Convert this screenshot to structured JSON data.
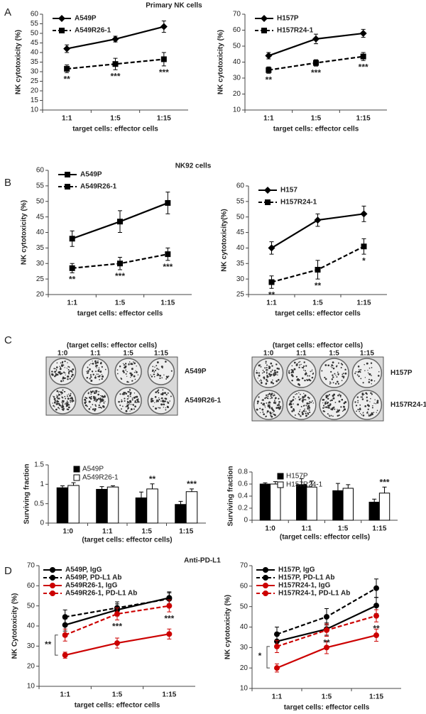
{
  "figure": {
    "panel_labels": [
      "A",
      "B",
      "C",
      "D"
    ],
    "panel_titles": [
      "Primary NK cells",
      "NK92 cells",
      "Anti-PD-L1"
    ]
  },
  "plates": [
    {
      "header": "(target cells: effector cells)",
      "ratios": [
        "1:0",
        "1:1",
        "1:5",
        "1:15"
      ],
      "rows": [
        "A549P",
        "A549R26-1"
      ]
    },
    {
      "header": "(target cells: effector cells)",
      "ratios": [
        "1:0",
        "1:1",
        "1:5",
        "1:15"
      ],
      "rows": [
        "H157P",
        "H157R24-1"
      ]
    }
  ],
  "chart_data": [
    {
      "type": "line",
      "xlabel": "target cells: effector cells",
      "ylabel": "NK cytotoxicity (%)",
      "categories": [
        "1:1",
        "1:5",
        "1:15"
      ],
      "ylim": [
        10,
        60
      ],
      "yticks": [
        10,
        15,
        20,
        25,
        30,
        35,
        40,
        45,
        50,
        55,
        60
      ],
      "series": [
        {
          "name": "A549P",
          "color": "#000000",
          "dash": false,
          "marker": "diamond",
          "values": [
            42,
            47,
            53.5
          ],
          "errors": [
            2,
            1.5,
            3
          ]
        },
        {
          "name": "A549R26-1",
          "color": "#000000",
          "dash": true,
          "marker": "square",
          "values": [
            31.5,
            34,
            36.5
          ],
          "errors": [
            2,
            3,
            3.5
          ],
          "annotations": [
            "**",
            "***",
            "***"
          ]
        }
      ]
    },
    {
      "type": "line",
      "xlabel": "target cells: effector cells",
      "ylabel": "NK cytotoxicity (%)",
      "categories": [
        "1:1",
        "1:5",
        "1:15"
      ],
      "ylim": [
        10,
        70
      ],
      "yticks": [
        10,
        20,
        30,
        40,
        50,
        60,
        70
      ],
      "series": [
        {
          "name": "H157P",
          "color": "#000000",
          "dash": false,
          "marker": "diamond",
          "values": [
            44,
            54.5,
            58
          ],
          "errors": [
            2,
            3,
            2.5
          ]
        },
        {
          "name": "H157R24-1",
          "color": "#000000",
          "dash": true,
          "marker": "square",
          "values": [
            35,
            39.5,
            43.5
          ],
          "errors": [
            2,
            2,
            2.5
          ],
          "annotations": [
            "**",
            "***",
            "***"
          ]
        }
      ]
    },
    {
      "type": "line",
      "xlabel": "target cells: effector cells",
      "ylabel": "NK cytotoxicity (%)",
      "categories": [
        "1:1",
        "1:5",
        "1:15"
      ],
      "ylim": [
        20,
        60
      ],
      "yticks": [
        20,
        25,
        30,
        35,
        40,
        45,
        50,
        55,
        60
      ],
      "series": [
        {
          "name": "A549P",
          "color": "#000000",
          "dash": false,
          "marker": "square",
          "values": [
            38,
            43.5,
            49.5
          ],
          "errors": [
            2.5,
            3.5,
            3.5
          ]
        },
        {
          "name": "A549R26-1",
          "color": "#000000",
          "dash": true,
          "marker": "square",
          "values": [
            28.5,
            30,
            33
          ],
          "errors": [
            1.5,
            2,
            2
          ],
          "annotations": [
            "**",
            "***",
            "***"
          ]
        }
      ]
    },
    {
      "type": "line",
      "xlabel": "target cells: effector cells",
      "ylabel": "NK cytotoxicity(%)",
      "categories": [
        "1:1",
        "1:5",
        "1:15"
      ],
      "ylim": [
        25,
        60
      ],
      "yticks": [
        25,
        30,
        35,
        40,
        45,
        50,
        55,
        60
      ],
      "series": [
        {
          "name": "H157",
          "color": "#000000",
          "dash": false,
          "marker": "diamond",
          "values": [
            40,
            49,
            51
          ],
          "errors": [
            2,
            2,
            2.5
          ]
        },
        {
          "name": "H157R24-1",
          "color": "#000000",
          "dash": true,
          "marker": "square",
          "values": [
            29,
            33,
            40.5
          ],
          "errors": [
            2,
            3,
            2.5
          ],
          "annotations": [
            "**",
            "**",
            "*"
          ]
        }
      ]
    },
    {
      "type": "bar",
      "xlabel": "(target cells: effector cells)",
      "ylabel": "Surviving fraction",
      "categories": [
        "1:0",
        "1:1",
        "1:5",
        "1:15"
      ],
      "ylim": [
        0,
        1.5
      ],
      "yticks": [
        0,
        0.5,
        1,
        1.5
      ],
      "series": [
        {
          "name": "A549P",
          "color": "#000000",
          "values": [
            0.91,
            0.87,
            0.65,
            0.48
          ],
          "errors": [
            0.05,
            0.07,
            0.15,
            0.08
          ]
        },
        {
          "name": "A549R26-1",
          "color": "#ffffff",
          "values": [
            0.97,
            0.93,
            0.88,
            0.81
          ],
          "errors": [
            0.07,
            0.03,
            0.13,
            0.07
          ],
          "annotations": [
            null,
            null,
            "**",
            "***"
          ]
        }
      ]
    },
    {
      "type": "bar",
      "xlabel": "(target cells: effector cells)",
      "ylabel": "Surviving fraction",
      "categories": [
        "1:0",
        "1:1",
        "1:5",
        "1:15"
      ],
      "ylim": [
        0,
        0.8
      ],
      "yticks": [
        0,
        0.2,
        0.4,
        0.6,
        0.8
      ],
      "series": [
        {
          "name": "H157P",
          "color": "#000000",
          "values": [
            0.6,
            0.59,
            0.49,
            0.3
          ],
          "errors": [
            0.02,
            0.1,
            0.12,
            0.05
          ]
        },
        {
          "name": "H157R24-1",
          "color": "#ffffff",
          "values": [
            0.6,
            0.55,
            0.53,
            0.45
          ],
          "errors": [
            0.04,
            0.1,
            0.06,
            0.1
          ],
          "annotations": [
            null,
            null,
            null,
            "***"
          ]
        }
      ]
    },
    {
      "type": "line",
      "xlabel": "target cells: effector cells",
      "ylabel": "NK Cytotoxicity (%)",
      "categories": [
        "1:1",
        "1:5",
        "1:15"
      ],
      "ylim": [
        10,
        70
      ],
      "yticks": [
        10,
        20,
        30,
        40,
        50,
        60,
        70
      ],
      "series": [
        {
          "name": "A549P, IgG",
          "color": "#000000",
          "dash": false,
          "marker": "circle",
          "values": [
            40.5,
            48,
            54
          ],
          "errors": [
            3,
            3,
            3
          ]
        },
        {
          "name": "A549P, PD-L1 Ab",
          "color": "#000000",
          "dash": true,
          "marker": "circle",
          "values": [
            44.5,
            49,
            53.5
          ],
          "errors": [
            3.5,
            3,
            3
          ]
        },
        {
          "name": "A549R26-1, IgG",
          "color": "#cc0000",
          "dash": false,
          "marker": "circle",
          "values": [
            25.5,
            31.5,
            36
          ],
          "errors": [
            1.5,
            2.5,
            2.5
          ]
        },
        {
          "name": "A549R26-1, PD-L1 Ab",
          "color": "#cc0000",
          "dash": true,
          "marker": "circle",
          "values": [
            35.5,
            46,
            50
          ],
          "errors": [
            3,
            3,
            3
          ],
          "annotations": [
            "**",
            "***",
            "***"
          ]
        }
      ]
    },
    {
      "type": "line",
      "xlabel": "target cells: effector cells",
      "ylabel": "NK cytotoxicity (%)",
      "categories": [
        "1:1",
        "1:5",
        "1:15"
      ],
      "ylim": [
        10,
        70
      ],
      "yticks": [
        10,
        20,
        30,
        40,
        50,
        60,
        70
      ],
      "series": [
        {
          "name": "H157P, IgG",
          "color": "#000000",
          "dash": false,
          "marker": "circle",
          "values": [
            33,
            39,
            50.5
          ],
          "errors": [
            3,
            3,
            4
          ]
        },
        {
          "name": "H157P, PD-L1 Ab",
          "color": "#000000",
          "dash": true,
          "marker": "circle",
          "values": [
            36.5,
            45,
            59
          ],
          "errors": [
            3.5,
            4,
            4.5
          ]
        },
        {
          "name": "H157R24-1, IgG",
          "color": "#cc0000",
          "dash": false,
          "marker": "circle",
          "values": [
            20,
            30,
            36
          ],
          "errors": [
            2,
            3,
            3
          ]
        },
        {
          "name": "H157R24-1, PD-L1 Ab",
          "color": "#cc0000",
          "dash": true,
          "marker": "circle",
          "values": [
            30.5,
            38.5,
            45.5
          ],
          "errors": [
            3,
            3,
            3
          ],
          "annotations": [
            "*",
            "**",
            "**"
          ]
        }
      ]
    }
  ]
}
